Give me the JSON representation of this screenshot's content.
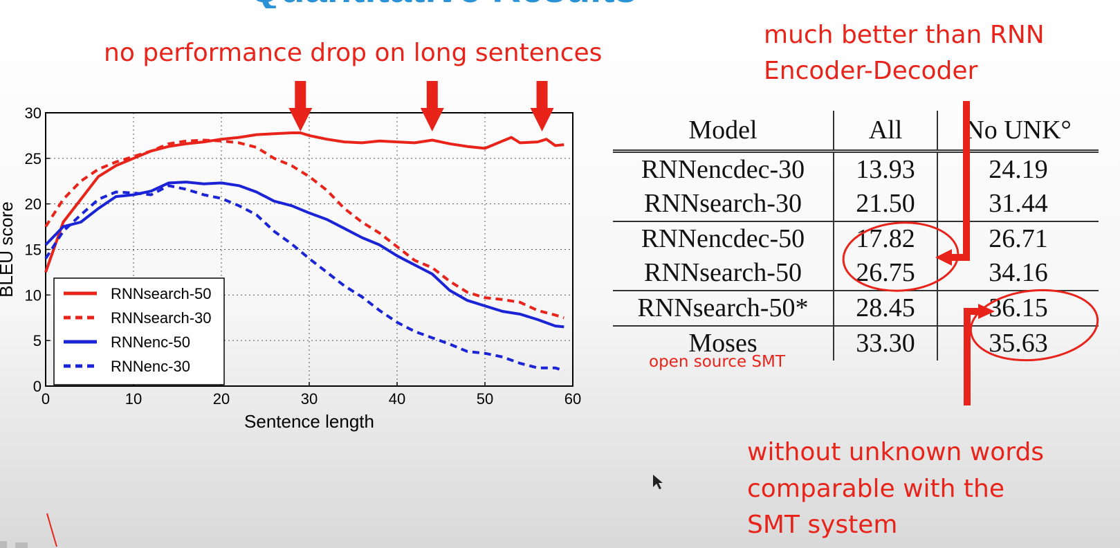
{
  "slide": {
    "title": "Quantitative Results"
  },
  "annotations": {
    "top": "no performance drop on long sentences",
    "top_right_line1": "much better than RNN",
    "top_right_line2": "Encoder-Decoder",
    "bottom_line1": "without unknown words",
    "bottom_line2": "comparable with the",
    "bottom_line3": "SMT system",
    "moses_note": "open source SMT",
    "color": "#e8231a"
  },
  "chart_data": {
    "type": "line",
    "xlabel": "Sentence length",
    "ylabel": "BLEU score",
    "xlim": [
      0,
      60
    ],
    "ylim": [
      0,
      30
    ],
    "xticks": [
      0,
      10,
      20,
      30,
      40,
      50,
      60
    ],
    "yticks": [
      0,
      5,
      10,
      15,
      20,
      25,
      30
    ],
    "grid": true,
    "legend_position": "bottom-left",
    "series": [
      {
        "name": "RNNsearch-50",
        "color": "#e8231a",
        "style": "solid",
        "x": [
          0,
          2,
          4,
          6,
          8,
          10,
          12,
          14,
          16,
          18,
          20,
          22,
          24,
          26,
          28,
          29,
          30,
          32,
          34,
          36,
          38,
          40,
          42,
          44,
          46,
          48,
          50,
          52,
          53,
          54,
          56,
          57,
          58,
          59
        ],
        "y": [
          12.5,
          18.0,
          20.5,
          23.0,
          24.2,
          25.0,
          25.8,
          26.3,
          26.6,
          26.8,
          27.1,
          27.3,
          27.6,
          27.7,
          27.8,
          27.8,
          27.5,
          27.1,
          26.8,
          26.7,
          26.9,
          26.8,
          26.7,
          27.0,
          26.6,
          26.3,
          26.1,
          26.9,
          27.3,
          26.7,
          26.8,
          27.1,
          26.4,
          26.5
        ]
      },
      {
        "name": "RNNsearch-30",
        "color": "#e8231a",
        "style": "dashed",
        "x": [
          0,
          2,
          4,
          6,
          8,
          10,
          12,
          14,
          16,
          18,
          20,
          22,
          24,
          26,
          28,
          30,
          32,
          34,
          36,
          38,
          40,
          42,
          44,
          46,
          48,
          50,
          52,
          54,
          56,
          58,
          59
        ],
        "y": [
          17.5,
          20.5,
          22.5,
          23.8,
          24.6,
          25.2,
          25.8,
          26.6,
          26.9,
          27.0,
          26.9,
          26.7,
          26.2,
          25.0,
          24.2,
          23.0,
          21.5,
          19.5,
          18.0,
          16.8,
          15.3,
          13.8,
          13.0,
          11.5,
          10.3,
          9.7,
          9.5,
          9.2,
          8.3,
          7.8,
          7.5
        ]
      },
      {
        "name": "RNNenc-50",
        "color": "#1a24d6",
        "style": "solid",
        "x": [
          0,
          2,
          4,
          6,
          8,
          10,
          12,
          14,
          16,
          18,
          20,
          22,
          24,
          26,
          28,
          30,
          32,
          34,
          36,
          38,
          40,
          42,
          44,
          46,
          48,
          50,
          52,
          54,
          56,
          58,
          59
        ],
        "y": [
          15.5,
          17.5,
          18.0,
          19.5,
          20.8,
          21.0,
          21.4,
          22.3,
          22.4,
          22.2,
          22.3,
          22.0,
          21.3,
          20.3,
          19.8,
          19.0,
          18.3,
          17.3,
          16.3,
          15.5,
          14.3,
          13.3,
          12.3,
          10.5,
          9.4,
          8.8,
          8.2,
          7.9,
          7.3,
          6.6,
          6.5
        ]
      },
      {
        "name": "RNNenc-30",
        "color": "#1a24d6",
        "style": "dashed",
        "x": [
          0,
          2,
          4,
          6,
          8,
          10,
          12,
          14,
          16,
          18,
          20,
          22,
          24,
          26,
          28,
          30,
          32,
          34,
          36,
          38,
          40,
          42,
          44,
          46,
          48,
          50,
          52,
          54,
          56,
          58,
          59
        ],
        "y": [
          14.0,
          17.0,
          18.8,
          20.5,
          21.3,
          21.2,
          21.0,
          22.0,
          21.6,
          21.0,
          20.6,
          19.8,
          18.8,
          17.0,
          15.6,
          14.0,
          12.5,
          11.0,
          9.8,
          8.3,
          7.0,
          6.0,
          5.3,
          4.6,
          3.8,
          3.6,
          3.2,
          2.5,
          2.0,
          2.0,
          1.7
        ]
      }
    ],
    "annotation_arrows_at_x": [
      29,
      44,
      56.5
    ]
  },
  "table": {
    "headers": [
      "Model",
      "All",
      "No UNK°"
    ],
    "rows": [
      [
        "RNNencdec-30",
        "13.93",
        "24.19"
      ],
      [
        "RNNsearch-30",
        "21.50",
        "31.44"
      ],
      [
        "RNNencdec-50",
        "17.82",
        "26.71"
      ],
      [
        "RNNsearch-50",
        "26.75",
        "34.16"
      ],
      [
        "RNNsearch-50*",
        "28.45",
        "36.15"
      ],
      [
        "Moses",
        "33.30",
        "35.63"
      ]
    ],
    "group_end_rows": [
      1,
      3,
      4
    ]
  }
}
